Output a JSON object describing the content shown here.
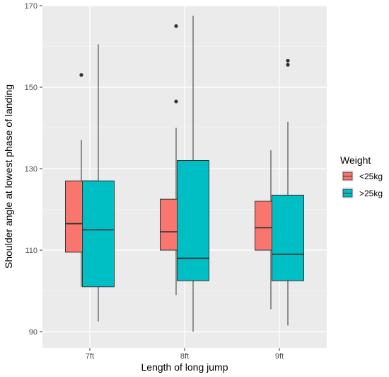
{
  "chart_data": {
    "type": "boxplot",
    "title": "",
    "xlabel": "Length of long jump",
    "ylabel": "Shoulder angle at lowest phase of landing",
    "categories": [
      "7ft",
      "8ft",
      "9ft"
    ],
    "yticks": [
      90,
      110,
      130,
      150,
      170
    ],
    "ylim": [
      86,
      170
    ],
    "grid": true,
    "legend": {
      "title": "Weight",
      "placement": "right"
    },
    "series": [
      {
        "name": "<25kg",
        "color": "#F8766D",
        "boxes": [
          {
            "category": "7ft",
            "whisker_low": 101,
            "q1": 109.5,
            "median": 116.5,
            "q3": 127,
            "whisker_high": 137,
            "outliers": [
              153
            ]
          },
          {
            "category": "8ft",
            "whisker_low": 99,
            "q1": 110,
            "median": 114.5,
            "q3": 122.5,
            "whisker_high": 140,
            "outliers": [
              146.5,
              165
            ]
          },
          {
            "category": "9ft",
            "whisker_low": 95.5,
            "q1": 110,
            "median": 115.5,
            "q3": 122,
            "whisker_high": 134.5,
            "outliers": []
          }
        ]
      },
      {
        "name": ">25kg",
        "color": "#00BFC4",
        "boxes": [
          {
            "category": "7ft",
            "whisker_low": 92.5,
            "q1": 101,
            "median": 115,
            "q3": 127,
            "whisker_high": 160.5,
            "outliers": []
          },
          {
            "category": "8ft",
            "whisker_low": 90,
            "q1": 102.5,
            "median": 108,
            "q3": 132,
            "whisker_high": 167.5,
            "outliers": []
          },
          {
            "category": "9ft",
            "whisker_low": 91.5,
            "q1": 102.5,
            "median": 109,
            "q3": 123.5,
            "whisker_high": 141.5,
            "outliers": [
              155.5,
              156.5
            ]
          }
        ]
      }
    ]
  }
}
